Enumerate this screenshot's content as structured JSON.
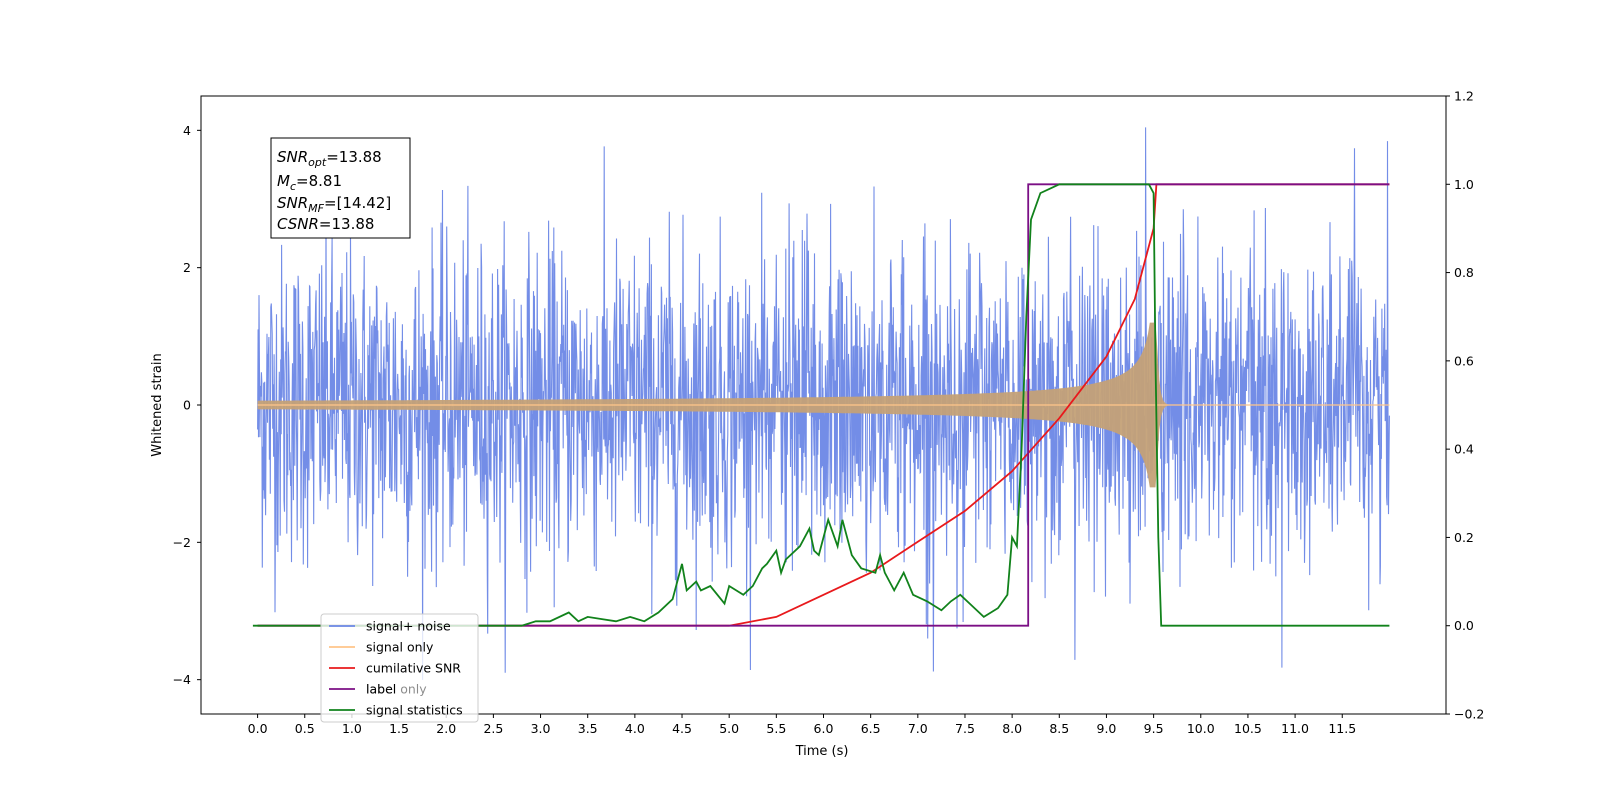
{
  "chart_data": {
    "type": "line",
    "title": "",
    "xlabel": "Time (s)",
    "ylabel": "Whitened strain",
    "xlim": [
      -0.6,
      12.6
    ],
    "ylim": [
      -4.5,
      4.5
    ],
    "y2lim": [
      -0.2,
      1.2
    ],
    "grid": false,
    "legend_position": "lower-left",
    "x_ticks": [
      "0.0",
      "0.5",
      "1.0",
      "1.5",
      "2.0",
      "2.5",
      "3.0",
      "3.5",
      "4.0",
      "4.5",
      "5.0",
      "5.5",
      "6.0",
      "6.5",
      "7.0",
      "7.5",
      "8.0",
      "8.5",
      "9.0",
      "9.5",
      "10.0",
      "10.5",
      "11.0",
      "11.5"
    ],
    "y_ticks": [
      "4",
      "2",
      "0",
      "−2",
      "−4"
    ],
    "y2_ticks": [
      "1.2",
      "1.0",
      "0.8",
      "0.6",
      "0.4",
      "0.2",
      "0.0",
      "−0.2"
    ],
    "annotation": {
      "snr_opt_base": "SNR",
      "snr_opt_sub": "opt",
      "snr_opt_value": "=13.88",
      "mc_base": "M",
      "mc_sub": "c",
      "mc_value": "=8.81",
      "snr_mf_base": "SNR",
      "snr_mf_sub": "MF",
      "snr_mf_value": "=[14.42]",
      "csnr_base": "CSNR",
      "csnr_value": "=13.88"
    },
    "series": [
      {
        "name": "signal+ noise",
        "color": "#6b87e6",
        "axis": "left",
        "kind": "noise",
        "t_start": 0.0,
        "t_end": 12.0,
        "std": 1.0,
        "max_abs": 4.1
      },
      {
        "name": "signal only",
        "color": "#ffc58a",
        "axis": "left",
        "kind": "chirp",
        "t_start": 0.0,
        "t_end": 12.0,
        "merger_time": 9.53,
        "peak_amplitude": 1.2
      },
      {
        "name": "cumilative SNR",
        "color": "#e8191c",
        "axis": "right",
        "x": [
          0.0,
          4.0,
          5.0,
          5.5,
          6.0,
          6.5,
          7.0,
          7.5,
          8.0,
          8.5,
          9.0,
          9.3,
          9.5,
          9.53,
          12.0
        ],
        "y": [
          0.0,
          0.0,
          0.0,
          0.02,
          0.07,
          0.12,
          0.19,
          0.26,
          0.35,
          0.47,
          0.61,
          0.74,
          0.9,
          1.0,
          1.0
        ]
      },
      {
        "name": "label",
        "color": "#7b0f85",
        "axis": "right",
        "x": [
          0.0,
          8.17,
          8.17,
          9.53,
          9.53,
          12.0
        ],
        "y": [
          0.0,
          0.0,
          1.0,
          1.0,
          1.0,
          1.0
        ]
      },
      {
        "name": "label only",
        "color": "#7b0f85",
        "axis": "right",
        "hidden_label": true,
        "x": [],
        "y": []
      },
      {
        "name": "signal statistics",
        "color": "#11821b",
        "axis": "right",
        "x": [
          -0.05,
          2.8,
          2.95,
          3.1,
          3.3,
          3.4,
          3.5,
          3.65,
          3.8,
          3.95,
          4.1,
          4.25,
          4.4,
          4.5,
          4.55,
          4.65,
          4.7,
          4.8,
          4.95,
          5.0,
          5.15,
          5.25,
          5.35,
          5.4,
          5.5,
          5.55,
          5.6,
          5.75,
          5.85,
          5.9,
          5.95,
          6.0,
          6.05,
          6.15,
          6.2,
          6.3,
          6.4,
          6.55,
          6.6,
          6.65,
          6.75,
          6.85,
          6.95,
          7.05,
          7.1,
          7.25,
          7.35,
          7.45,
          7.55,
          7.7,
          7.85,
          7.95,
          8.0,
          8.05,
          8.1,
          8.15,
          8.2,
          8.3,
          8.4,
          8.5,
          8.6,
          8.7,
          8.8,
          9.0,
          9.2,
          9.4,
          9.45,
          9.5,
          9.52,
          9.55,
          9.58,
          12.0
        ],
        "y": [
          0.0,
          0.0,
          0.01,
          0.01,
          0.03,
          0.01,
          0.02,
          0.015,
          0.01,
          0.02,
          0.01,
          0.03,
          0.06,
          0.14,
          0.08,
          0.1,
          0.08,
          0.09,
          0.05,
          0.09,
          0.07,
          0.09,
          0.13,
          0.14,
          0.17,
          0.12,
          0.15,
          0.18,
          0.22,
          0.17,
          0.16,
          0.2,
          0.24,
          0.18,
          0.24,
          0.16,
          0.13,
          0.12,
          0.16,
          0.12,
          0.08,
          0.12,
          0.07,
          0.06,
          0.055,
          0.035,
          0.055,
          0.07,
          0.05,
          0.02,
          0.04,
          0.07,
          0.2,
          0.18,
          0.4,
          0.7,
          0.92,
          0.98,
          0.99,
          1.0,
          1.0,
          1.0,
          1.0,
          1.0,
          1.0,
          1.0,
          1.0,
          0.98,
          0.6,
          0.2,
          0.0,
          0.0
        ]
      }
    ]
  }
}
